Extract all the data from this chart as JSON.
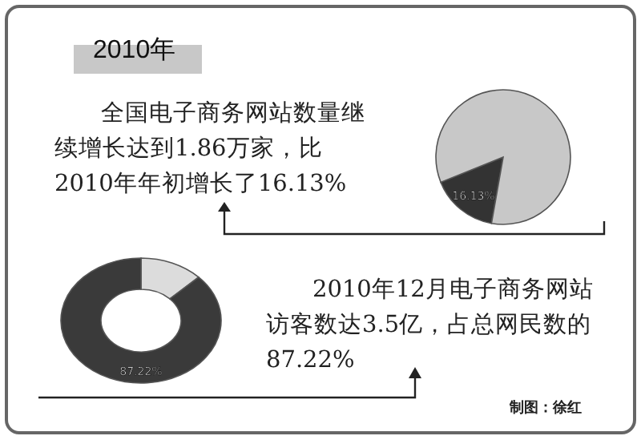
{
  "chart_data": [
    {
      "type": "pie",
      "title": "2010年",
      "annotations": [
        "全国电子商务网站数量继续增长达到1.86万家，比2010年年初增长了16.13%"
      ],
      "categories": [
        null,
        null
      ],
      "values": [
        16.13,
        83.87
      ],
      "colors": [
        "#333333",
        "#c8c8c8"
      ],
      "value_labels": [
        "16.13%",
        null
      ]
    },
    {
      "type": "donut",
      "annotations": [
        "2010年12月电子商务网站访客数达3.5亿，占总网民数的87.22%",
        "制图：徐红"
      ],
      "categories": [
        null,
        null
      ],
      "values": [
        87.22,
        12.78
      ],
      "colors": [
        "#3a3a3a",
        "#dcdcdc"
      ],
      "value_labels": [
        "87.22%",
        null
      ]
    }
  ]
}
